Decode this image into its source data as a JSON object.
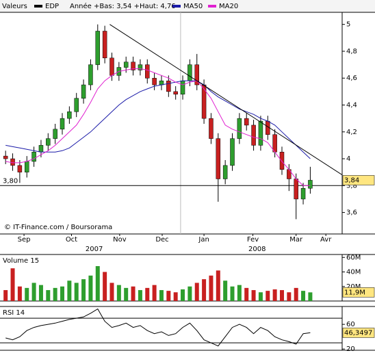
{
  "header": {
    "menu": "Valeurs",
    "symbol": "EDP",
    "range": "Année +Bas: 3,54 +Haut: 4,76",
    "ma50": "MA50",
    "ma20": "MA20",
    "ma50_color": "#1a1aa8",
    "ma20_color": "#e020d0",
    "symbol_color": "#000000"
  },
  "chart_data": [
    {
      "type": "candlestick",
      "watermark": "© IT-Finance.com / Boursorama",
      "xlim": [
        -0.5,
        47.5
      ],
      "ylim": [
        3.44,
        5.09
      ],
      "xticks": [
        {
          "value": 2.6,
          "label": "Sep"
        },
        {
          "value": 9.3,
          "label": "Oct"
        },
        {
          "value": 16.1,
          "label": "Nov"
        },
        {
          "value": 22.1,
          "label": "Dec"
        },
        {
          "value": 28,
          "label": "Jan"
        },
        {
          "value": 34.9,
          "label": "Fev"
        },
        {
          "value": 41,
          "label": "Mar"
        },
        {
          "value": 45.2,
          "label": "Avr"
        }
      ],
      "year_labels": [
        {
          "value": 12.5,
          "label": "2007"
        },
        {
          "value": 35.5,
          "label": "2008"
        }
      ],
      "year_divider": 24.7,
      "yticks": [
        {
          "value": 3.6,
          "label": "3,6"
        },
        {
          "value": 3.8,
          "label": "3,8"
        },
        4,
        {
          "value": 4.2,
          "label": "4,2"
        },
        {
          "value": 4.4,
          "label": "4,4"
        },
        {
          "value": 4.6,
          "label": "4,6"
        },
        {
          "value": 4.8,
          "label": "4,8"
        },
        5
      ],
      "up_color": "#2e9e2e",
      "down_color": "#c82020",
      "open": [
        4.02,
        4.0,
        3.95,
        3.9,
        3.98,
        4.05,
        4.1,
        4.15,
        4.22,
        4.3,
        4.35,
        4.45,
        4.55,
        4.7,
        4.95,
        4.75,
        4.62,
        4.68,
        4.72,
        4.66,
        4.7,
        4.6,
        4.55,
        4.58,
        4.5,
        4.48,
        4.58,
        4.7,
        4.55,
        4.3,
        4.15,
        3.85,
        3.95,
        4.15,
        4.3,
        4.25,
        4.1,
        4.28,
        4.18,
        4.05,
        3.92,
        3.85,
        3.7,
        3.78
      ],
      "high": [
        4.06,
        4.04,
        3.99,
        4.02,
        4.09,
        4.14,
        4.19,
        4.26,
        4.34,
        4.39,
        4.49,
        4.59,
        4.74,
        5.0,
        4.99,
        4.79,
        4.72,
        4.76,
        4.76,
        4.74,
        4.74,
        4.64,
        4.62,
        4.62,
        4.54,
        4.62,
        4.74,
        4.78,
        4.59,
        4.34,
        4.19,
        3.99,
        4.19,
        4.34,
        4.34,
        4.29,
        4.32,
        4.32,
        4.22,
        4.09,
        3.96,
        3.89,
        3.82,
        3.94
      ],
      "low": [
        3.96,
        3.91,
        3.82,
        3.86,
        3.94,
        4.01,
        4.06,
        4.11,
        4.18,
        4.26,
        4.31,
        4.41,
        4.51,
        4.66,
        4.71,
        4.58,
        4.58,
        4.64,
        4.62,
        4.62,
        4.56,
        4.51,
        4.51,
        4.46,
        4.44,
        4.44,
        4.54,
        4.51,
        4.26,
        4.11,
        3.68,
        3.81,
        3.91,
        4.11,
        4.21,
        4.06,
        4.06,
        4.14,
        4.01,
        3.88,
        3.76,
        3.55,
        3.66,
        3.74
      ],
      "close": [
        4.0,
        3.95,
        3.9,
        3.98,
        4.05,
        4.1,
        4.15,
        4.22,
        4.3,
        4.35,
        4.45,
        4.55,
        4.7,
        4.95,
        4.75,
        4.62,
        4.68,
        4.72,
        4.66,
        4.7,
        4.6,
        4.55,
        4.58,
        4.5,
        4.48,
        4.58,
        4.7,
        4.55,
        4.3,
        4.15,
        3.85,
        3.95,
        4.15,
        4.3,
        4.25,
        4.1,
        4.28,
        4.18,
        4.05,
        3.92,
        3.85,
        3.7,
        3.78,
        3.84
      ],
      "last_label": {
        "value": 3.84,
        "label": "3,84"
      },
      "series": [
        {
          "name": "MA50",
          "color": "#1a1aa8",
          "values": [
            4.1,
            4.09,
            4.08,
            4.07,
            4.06,
            4.05,
            4.05,
            4.05,
            4.06,
            4.08,
            4.12,
            4.16,
            4.2,
            4.25,
            4.3,
            4.35,
            4.4,
            4.44,
            4.47,
            4.5,
            4.52,
            4.54,
            4.55,
            4.56,
            4.57,
            4.58,
            4.58,
            4.58,
            4.55,
            4.5,
            4.46,
            4.43,
            4.4,
            4.37,
            4.35,
            4.33,
            4.3,
            4.28,
            4.25,
            4.2,
            4.15,
            4.1,
            4.05,
            4.0
          ]
        },
        {
          "name": "MA20",
          "color": "#e020d0",
          "values": [
            3.98,
            3.97,
            3.97,
            3.98,
            4.0,
            4.03,
            4.06,
            4.1,
            4.15,
            4.2,
            4.25,
            4.33,
            4.42,
            4.52,
            4.58,
            4.62,
            4.65,
            4.66,
            4.67,
            4.67,
            4.66,
            4.64,
            4.62,
            4.6,
            4.57,
            4.55,
            4.57,
            4.58,
            4.52,
            4.45,
            4.35,
            4.25,
            4.22,
            4.2,
            4.18,
            4.16,
            4.15,
            4.12,
            4.05,
            3.98,
            3.92,
            3.85,
            3.8,
            3.8
          ]
        }
      ],
      "trend_line": {
        "x": [
          14.7,
          47.5
        ],
        "y": [
          5.0,
          3.88
        ]
      },
      "hline": {
        "value": 3.8,
        "label": "3,80"
      }
    },
    {
      "type": "bar",
      "title": "Volume 15",
      "xlim": [
        -0.5,
        47.5
      ],
      "ylim": [
        0,
        64
      ],
      "yticks": [
        {
          "value": 20,
          "label": "20M"
        },
        {
          "value": 40,
          "label": "40M"
        },
        {
          "value": 60,
          "label": "60M"
        }
      ],
      "values": [
        15,
        45,
        20,
        18,
        25,
        22,
        15,
        18,
        20,
        28,
        25,
        30,
        35,
        48,
        40,
        25,
        22,
        18,
        20,
        15,
        18,
        22,
        15,
        14,
        12,
        16,
        20,
        25,
        30,
        35,
        42,
        28,
        20,
        22,
        18,
        15,
        12,
        14,
        16,
        15,
        12,
        18,
        14,
        11.9
      ],
      "last_label": {
        "value": 11.9,
        "label": "11,9M"
      }
    },
    {
      "type": "line",
      "title": "RSI 14",
      "xlim": [
        -0.5,
        47.5
      ],
      "ylim": [
        18,
        89
      ],
      "yticks": [
        20,
        60
      ],
      "levels": [
        30,
        70
      ],
      "color": "#000000",
      "values": [
        38,
        35,
        40,
        50,
        55,
        58,
        60,
        62,
        65,
        68,
        70,
        72,
        78,
        85,
        65,
        55,
        58,
        62,
        55,
        58,
        50,
        45,
        48,
        42,
        45,
        55,
        62,
        50,
        35,
        30,
        25,
        40,
        55,
        60,
        55,
        45,
        55,
        50,
        40,
        35,
        32,
        28,
        45,
        46.3497
      ],
      "last_label": {
        "value": 46.3497,
        "label": "46,3497"
      }
    }
  ]
}
